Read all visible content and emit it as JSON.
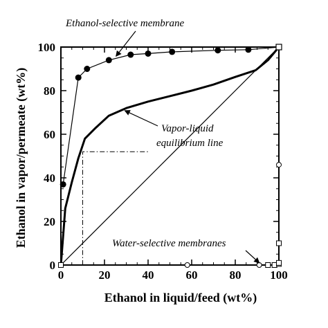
{
  "chart_data": {
    "type": "line",
    "title": "",
    "xlabel": "Ethanol in liquid/feed (wt%)",
    "ylabel": "Ethanol in vapor/permeate (wt%)",
    "xlim": [
      0,
      100
    ],
    "ylim": [
      0,
      100
    ],
    "x_ticks": [
      "0",
      "20",
      "40",
      "60",
      "80",
      "100"
    ],
    "y_ticks": [
      "0",
      "20",
      "40",
      "60",
      "80",
      "100"
    ],
    "grid": false,
    "series": [
      {
        "name": "Ethanol-selective membrane",
        "style": "filled-circle-line",
        "points": [
          [
            1,
            37
          ],
          [
            8,
            86
          ],
          [
            12,
            90
          ],
          [
            22,
            94
          ],
          [
            32,
            96.5
          ],
          [
            40,
            97
          ],
          [
            51,
            97.8
          ],
          [
            72,
            98.5
          ],
          [
            86,
            98.8
          ],
          [
            100,
            100
          ]
        ]
      },
      {
        "name": "Vapor-liquid equilibrium line",
        "style": "thick-line",
        "points": [
          [
            0,
            0
          ],
          [
            2,
            26
          ],
          [
            5,
            38
          ],
          [
            8,
            49
          ],
          [
            11,
            58
          ],
          [
            16,
            63
          ],
          [
            22,
            68.5
          ],
          [
            30,
            72
          ],
          [
            40,
            75
          ],
          [
            50,
            77.5
          ],
          [
            60,
            80
          ],
          [
            70,
            82.8
          ],
          [
            80,
            86.3
          ],
          [
            89.4,
            89.4
          ],
          [
            95,
            94
          ],
          [
            100,
            100
          ]
        ]
      },
      {
        "name": "Diagonal",
        "style": "thin-line",
        "points": [
          [
            0,
            0
          ],
          [
            100,
            100
          ]
        ]
      },
      {
        "name": "Water-selective membranes",
        "style": "open-markers",
        "points_circle": [
          [
            58,
            0
          ],
          [
            91,
            0
          ],
          [
            100,
            46
          ]
        ],
        "points_square": [
          [
            0,
            0
          ],
          [
            95,
            0
          ],
          [
            98,
            0
          ],
          [
            100,
            0.5
          ],
          [
            100,
            1
          ],
          [
            100,
            10
          ]
        ]
      }
    ],
    "reference_line": {
      "style": "dash-dot",
      "points": [
        [
          10,
          0
        ],
        [
          10,
          52
        ],
        [
          40,
          52
        ]
      ]
    },
    "annotations": [
      {
        "text": "Ethanol-selective membrane",
        "arrow_to": [
          24,
          94.5
        ]
      },
      {
        "text_lines": [
          "Vapor-liquid",
          "equilibrium line"
        ],
        "arrow_to": [
          28,
          71.5
        ]
      },
      {
        "text": "Water-selective membranes",
        "arrow_to": [
          92,
          0
        ]
      }
    ]
  }
}
